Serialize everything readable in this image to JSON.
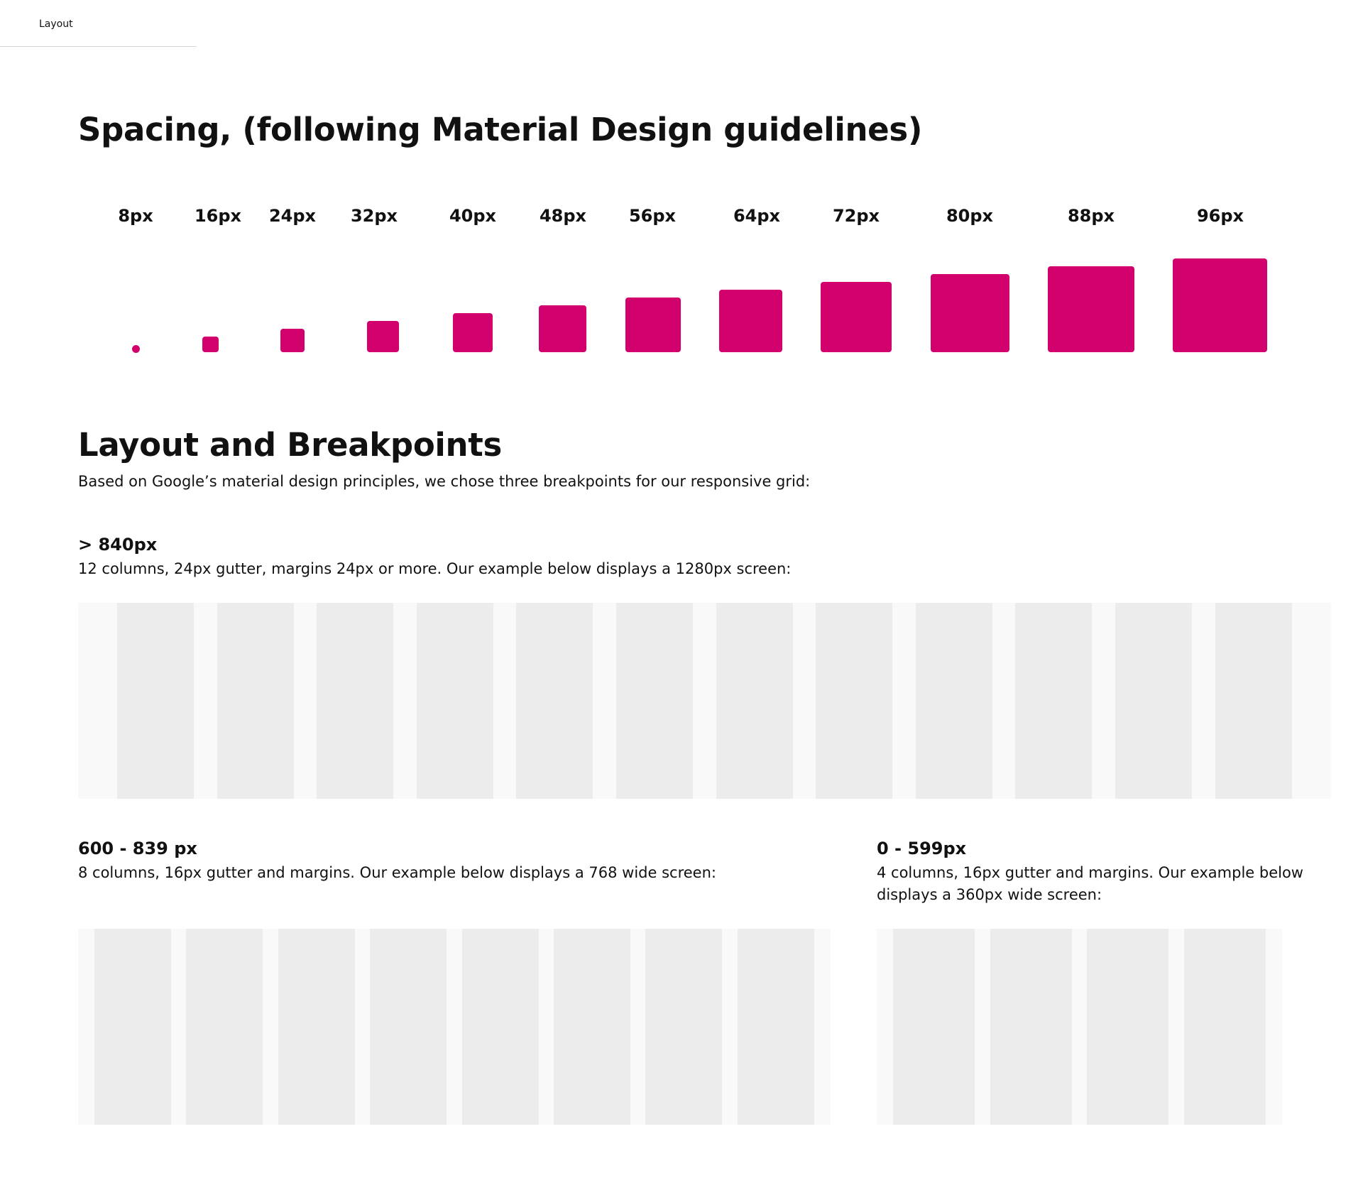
{
  "tab": {
    "label": "Layout"
  },
  "spacing": {
    "title": "Spacing, (following Material Design guidelines)",
    "color": "#d1006c",
    "steps": [
      {
        "label": "8px"
      },
      {
        "label": "16px"
      },
      {
        "label": "24px"
      },
      {
        "label": "32px"
      },
      {
        "label": "40px"
      },
      {
        "label": "48px"
      },
      {
        "label": "56px"
      },
      {
        "label": "64px"
      },
      {
        "label": "72px"
      },
      {
        "label": "80px"
      },
      {
        "label": "88px"
      },
      {
        "label": "96px"
      }
    ]
  },
  "layout": {
    "title": "Layout and Breakpoints",
    "intro": "Based on Google’s material design principles, we chose three breakpoints for our responsive grid:",
    "breakpoints": [
      {
        "title": "> 840px",
        "desc": "12 columns, 24px gutter, margins 24px or more. Our example below displays a 1280px screen:",
        "columns": 12
      },
      {
        "title": "600 - 839 px",
        "desc": "8 columns, 16px gutter and margins. Our example below displays a 768 wide screen:",
        "columns": 8
      },
      {
        "title": "0 - 599px",
        "desc": "4 columns, 16px gutter and margins. Our example below displays a 360px wide screen:",
        "columns": 4
      }
    ]
  }
}
